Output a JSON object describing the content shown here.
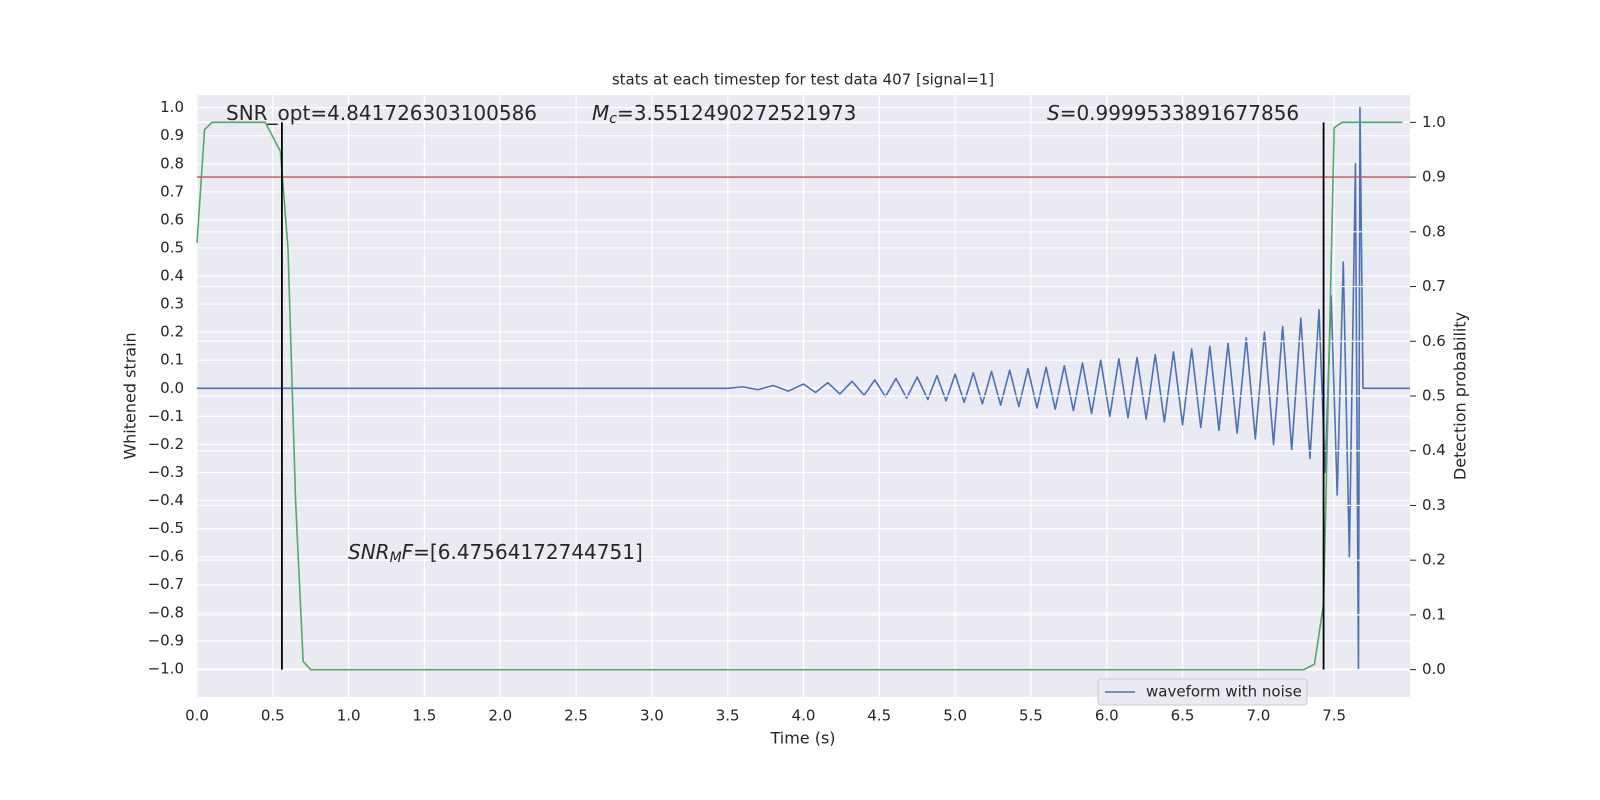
{
  "chart_data": {
    "type": "line",
    "title": "stats at each timestep for test data 407 [signal=1]",
    "x_label": "Time (s)",
    "y_label": "Whitened strain",
    "y2_label": "Detection probability",
    "xlim": [
      0,
      8
    ],
    "ylim": [
      -1.1,
      1.045
    ],
    "y2lim": [
      -0.05,
      1.05
    ],
    "grid": true,
    "legend": "lower right",
    "xticks": [
      {
        "value": 0,
        "label": "0.0"
      },
      {
        "value": 0.5,
        "label": "0.5"
      },
      {
        "value": 1,
        "label": "1.0"
      },
      {
        "value": 1.5,
        "label": "1.5"
      },
      {
        "value": 2,
        "label": "2.0"
      },
      {
        "value": 2.5,
        "label": "2.5"
      },
      {
        "value": 3,
        "label": "3.0"
      },
      {
        "value": 3.5,
        "label": "3.5"
      },
      {
        "value": 4,
        "label": "4.0"
      },
      {
        "value": 4.5,
        "label": "4.5"
      },
      {
        "value": 5,
        "label": "5.0"
      },
      {
        "value": 5.5,
        "label": "5.5"
      },
      {
        "value": 6,
        "label": "6.0"
      },
      {
        "value": 6.5,
        "label": "6.5"
      },
      {
        "value": 7,
        "label": "7.0"
      },
      {
        "value": 7.5,
        "label": "7.5"
      }
    ],
    "yticks": [
      {
        "value": -1.0,
        "label": "−1.0"
      },
      {
        "value": -0.9,
        "label": "−0.9"
      },
      {
        "value": -0.8,
        "label": "−0.8"
      },
      {
        "value": -0.7,
        "label": "−0.7"
      },
      {
        "value": -0.6,
        "label": "−0.6"
      },
      {
        "value": -0.5,
        "label": "−0.5"
      },
      {
        "value": -0.4,
        "label": "−0.4"
      },
      {
        "value": -0.3,
        "label": "−0.3"
      },
      {
        "value": -0.2,
        "label": "−0.2"
      },
      {
        "value": -0.1,
        "label": "−0.1"
      },
      {
        "value": 0,
        "label": "0.0"
      },
      {
        "value": 0.1,
        "label": "0.1"
      },
      {
        "value": 0.2,
        "label": "0.2"
      },
      {
        "value": 0.3,
        "label": "0.3"
      },
      {
        "value": 0.4,
        "label": "0.4"
      },
      {
        "value": 0.5,
        "label": "0.5"
      },
      {
        "value": 0.6,
        "label": "0.6"
      },
      {
        "value": 0.7,
        "label": "0.7"
      },
      {
        "value": 0.8,
        "label": "0.8"
      },
      {
        "value": 0.9,
        "label": "0.9"
      },
      {
        "value": 1.0,
        "label": "1.0"
      }
    ],
    "y2ticks": [
      {
        "value": 0,
        "label": "0.0"
      },
      {
        "value": 0.1,
        "label": "0.1"
      },
      {
        "value": 0.2,
        "label": "0.2"
      },
      {
        "value": 0.3,
        "label": "0.3"
      },
      {
        "value": 0.4,
        "label": "0.4"
      },
      {
        "value": 0.5,
        "label": "0.5"
      },
      {
        "value": 0.6,
        "label": "0.6"
      },
      {
        "value": 0.7,
        "label": "0.7"
      },
      {
        "value": 0.8,
        "label": "0.8"
      },
      {
        "value": 0.9,
        "label": "0.9"
      },
      {
        "value": 1.0,
        "label": "1.0"
      }
    ],
    "series": [
      {
        "name": "waveform with noise",
        "color": "#4c72b0",
        "x": [
          0,
          3.5,
          3.6,
          3.7,
          3.8,
          3.9,
          4.0,
          4.08,
          4.16,
          4.24,
          4.32,
          4.4,
          4.47,
          4.54,
          4.61,
          4.68,
          4.75,
          4.82,
          4.88,
          4.94,
          5.0,
          5.06,
          5.12,
          5.18,
          5.24,
          5.3,
          5.36,
          5.42,
          5.48,
          5.54,
          5.6,
          5.66,
          5.72,
          5.78,
          5.84,
          5.9,
          5.96,
          6.02,
          6.08,
          6.14,
          6.2,
          6.26,
          6.32,
          6.38,
          6.44,
          6.5,
          6.56,
          6.62,
          6.68,
          6.74,
          6.8,
          6.86,
          6.92,
          6.98,
          7.04,
          7.1,
          7.16,
          7.22,
          7.28,
          7.34,
          7.4,
          7.44,
          7.48,
          7.52,
          7.56,
          7.6,
          7.64,
          7.66,
          7.67,
          7.69,
          8.0
        ],
        "values": [
          0,
          0,
          0.005,
          -0.005,
          0.01,
          -0.01,
          0.015,
          -0.015,
          0.02,
          -0.02,
          0.025,
          -0.025,
          0.03,
          -0.03,
          0.035,
          -0.035,
          0.04,
          -0.04,
          0.045,
          -0.045,
          0.05,
          -0.05,
          0.055,
          -0.055,
          0.06,
          -0.06,
          0.065,
          -0.065,
          0.07,
          -0.07,
          0.075,
          -0.075,
          0.08,
          -0.08,
          0.09,
          -0.09,
          0.1,
          -0.1,
          0.105,
          -0.105,
          0.11,
          -0.11,
          0.12,
          -0.12,
          0.13,
          -0.13,
          0.14,
          -0.14,
          0.15,
          -0.15,
          0.16,
          -0.16,
          0.18,
          -0.18,
          0.2,
          -0.2,
          0.22,
          -0.22,
          0.25,
          -0.25,
          0.28,
          -0.3,
          0.33,
          -0.38,
          0.45,
          -0.6,
          0.8,
          -1.0,
          1.0,
          0,
          0
        ]
      }
    ],
    "probability": {
      "color": "#55a868",
      "axis": "y2",
      "x": [
        0,
        0.05,
        0.1,
        0.45,
        0.55,
        0.6,
        0.65,
        0.7,
        0.75,
        7.3,
        7.37,
        7.43,
        7.5,
        7.55,
        7.95
      ],
      "values": [
        0.78,
        0.987,
        1.0,
        1.0,
        0.947,
        0.77,
        0.31,
        0.015,
        0,
        0,
        0.01,
        0.12,
        0.99,
        1.0,
        1.0
      ]
    },
    "threshold": {
      "y": 0.9,
      "axis": "y2",
      "color": "#c44e52"
    },
    "vlines": {
      "x": [
        0.56,
        7.43
      ],
      "ymin": 0,
      "ymax": 1,
      "axis": "y2",
      "color": "#000000"
    },
    "annotations": [
      [
        {
          "text": "SNR_opt=4.841726303100586"
        }
      ],
      [
        {
          "text": "M",
          "style": "italic"
        },
        {
          "text": "c",
          "style": "sub"
        },
        {
          "text": "=3.5512490272521973"
        }
      ],
      [
        {
          "text": "S",
          "style": "italic"
        },
        {
          "text": "=0.9999533891677856"
        }
      ],
      [
        {
          "text": "SNR",
          "style": "italic"
        },
        {
          "text": "M",
          "style": "sub"
        },
        {
          "text": "F",
          "style": "italic"
        },
        {
          "text": "=[6.47564172744751]"
        }
      ]
    ]
  }
}
